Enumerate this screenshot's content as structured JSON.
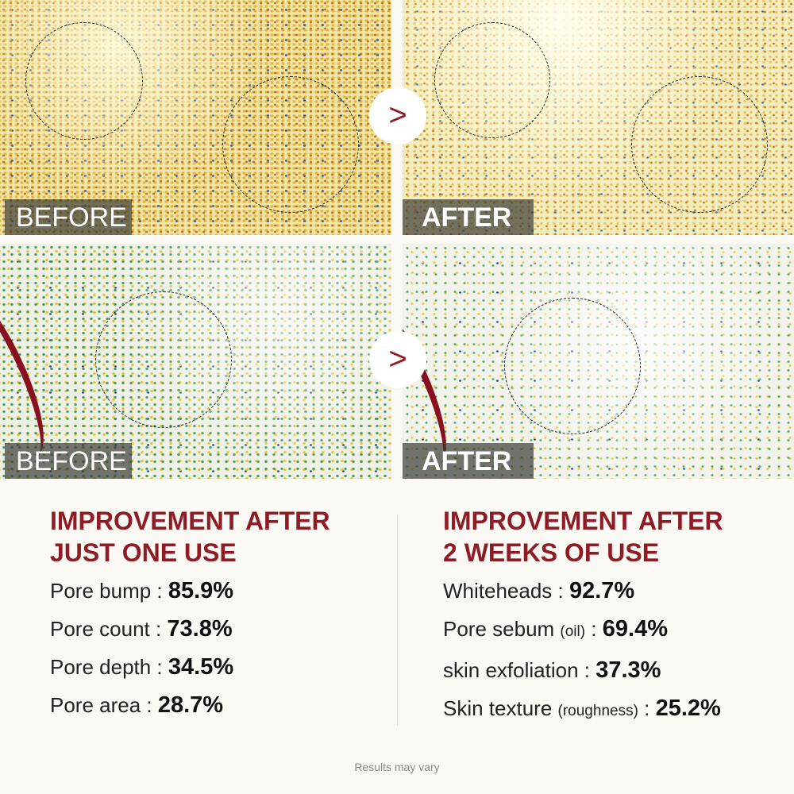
{
  "images": {
    "before_label": "BEFORE",
    "after_label": "AFTER",
    "arrow_icon": "chevron-right-icon"
  },
  "left": {
    "heading_line1": "IMPROVEMENT AFTER",
    "heading_line2": "JUST ONE USE",
    "stats": [
      {
        "label": "Pore bump : ",
        "value": "85.9%"
      },
      {
        "label": "Pore count : ",
        "value": "73.8%"
      },
      {
        "label": "Pore depth : ",
        "value": "34.5%"
      },
      {
        "label": "Pore area : ",
        "value": "28.7%"
      }
    ]
  },
  "right": {
    "heading_line1": "IMPROVEMENT AFTER",
    "heading_line2": "2 WEEKS OF USE",
    "stats": [
      {
        "label": "Whiteheads : ",
        "note": "",
        "value": "92.7%"
      },
      {
        "label": "Pore sebum ",
        "note": "(oil)",
        "sep": " : ",
        "value": "69.4%"
      },
      {
        "label": "skin exfoliation : ",
        "note": "",
        "value": "37.3%"
      },
      {
        "label": "Skin texture ",
        "note": "(roughness)",
        "sep": " : ",
        "value": "25.2%"
      }
    ]
  },
  "footer": "Results may vary",
  "colors": {
    "accent": "#8e1b25",
    "background": "#fbf9f3"
  }
}
